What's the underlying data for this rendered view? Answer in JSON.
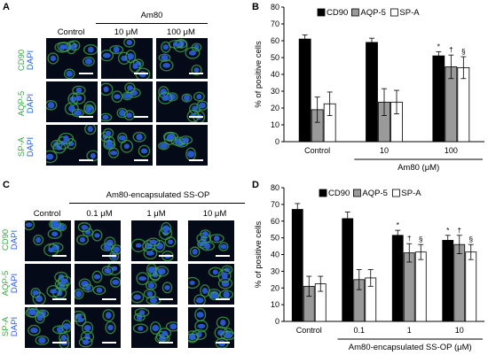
{
  "panels": {
    "A": {
      "label": "A",
      "group_header": "Am80",
      "columns": [
        "Control",
        "10 μM",
        "100 μM"
      ],
      "rows": [
        {
          "marker": "CD90",
          "stain": "DAPI"
        },
        {
          "marker": "AQP-5",
          "stain": "DAPI"
        },
        {
          "marker": "SP-A",
          "stain": "DAPI"
        }
      ]
    },
    "C": {
      "label": "C",
      "group_header": "Am80-encapsulated SS-OP",
      "columns": [
        "Control",
        "0.1 μM",
        "1 μM",
        "10 μM"
      ],
      "rows": [
        {
          "marker": "CD90",
          "stain": "DAPI"
        },
        {
          "marker": "AQP-5",
          "stain": "DAPI"
        },
        {
          "marker": "SP-A",
          "stain": "DAPI"
        }
      ]
    },
    "B": {
      "label": "B"
    },
    "D": {
      "label": "D"
    }
  },
  "colors": {
    "CD90": "#000000",
    "AQP-5": "#9a9a9a",
    "SP-A": "#ffffff",
    "marker_green": "#3fa34d",
    "dapi_blue": "#2b5fd9"
  },
  "chart_data": [
    {
      "panel": "B",
      "type": "bar",
      "categories": [
        "Control",
        "10",
        "100"
      ],
      "series": [
        {
          "name": "CD90",
          "values": [
            61,
            59,
            51
          ],
          "errors": [
            2.5,
            2.5,
            2.5
          ]
        },
        {
          "name": "AQP-5",
          "values": [
            19,
            23.5,
            44.5
          ],
          "errors": [
            7.5,
            8,
            7
          ]
        },
        {
          "name": "SP-A",
          "values": [
            22.5,
            23.5,
            44
          ],
          "errors": [
            7,
            7,
            6.5
          ]
        }
      ],
      "annotations": [
        [
          "",
          "",
          "*"
        ],
        [
          "",
          "",
          "†"
        ],
        [
          "",
          "",
          "§"
        ]
      ],
      "ylabel": "% of positive cells",
      "xlabel": "Am80 (μM)",
      "ylim": [
        0,
        80
      ],
      "yticks": [
        0,
        10,
        20,
        30,
        40,
        50,
        60,
        70,
        80
      ],
      "legend_position": "top"
    },
    {
      "panel": "D",
      "type": "bar",
      "categories": [
        "Control",
        "0.1",
        "1",
        "10"
      ],
      "series": [
        {
          "name": "CD90",
          "values": [
            67,
            61.5,
            51.5,
            48.5
          ],
          "errors": [
            3.5,
            4,
            3,
            3
          ]
        },
        {
          "name": "AQP-5",
          "values": [
            21,
            25,
            41,
            46
          ],
          "errors": [
            6,
            6,
            5.5,
            5.5
          ]
        },
        {
          "name": "SP-A",
          "values": [
            22.5,
            26,
            41.5,
            41.5
          ],
          "errors": [
            4.5,
            5,
            4.5,
            4.5
          ]
        }
      ],
      "annotations": [
        [
          "",
          "",
          "*",
          "*"
        ],
        [
          "",
          "",
          "†",
          "†"
        ],
        [
          "",
          "",
          "§",
          "§"
        ]
      ],
      "ylabel": "% of positive cells",
      "xlabel": "Am80-encapsulated SS-OP (μM)",
      "ylim": [
        0,
        80
      ],
      "yticks": [
        0,
        10,
        20,
        30,
        40,
        50,
        60,
        70,
        80
      ],
      "legend_position": "top"
    }
  ]
}
